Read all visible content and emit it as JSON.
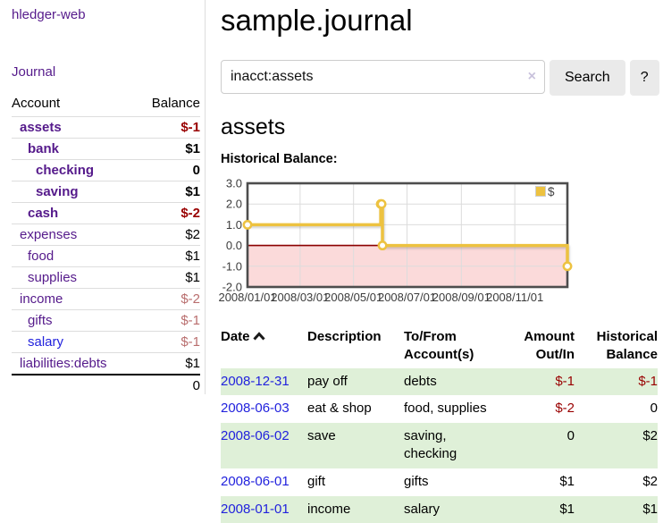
{
  "sidebar": {
    "app_title": "hledger-web",
    "nav_journal_label": "Journal",
    "accounts_table": {
      "headers": {
        "account": "Account",
        "balance": "Balance"
      },
      "rows": [
        {
          "account": "assets",
          "indent": 1,
          "bold": true,
          "balance": "$-1"
        },
        {
          "account": "bank",
          "indent": 2,
          "bold": true,
          "balance": "$1"
        },
        {
          "account": "checking",
          "indent": 3,
          "bold": true,
          "balance": "0"
        },
        {
          "account": "saving",
          "indent": 3,
          "bold": true,
          "balance": "$1"
        },
        {
          "account": "cash",
          "indent": 2,
          "bold": true,
          "balance": "$-2"
        },
        {
          "account": "expenses",
          "indent": 1,
          "bold": false,
          "balance": "$2"
        },
        {
          "account": "food",
          "indent": 2,
          "bold": false,
          "balance": "$1"
        },
        {
          "account": "supplies",
          "indent": 2,
          "bold": false,
          "balance": "$1"
        },
        {
          "account": "income",
          "indent": 1,
          "bold": false,
          "balance": "$-2"
        },
        {
          "account": "gifts",
          "indent": 2,
          "bold": false,
          "balance": "$-1"
        },
        {
          "account": "salary",
          "indent": 2,
          "bold": false,
          "balance": "$-1",
          "link_style": "blue"
        },
        {
          "account": "liabilities:debts",
          "indent": 1,
          "bold": false,
          "balance": "$1"
        }
      ],
      "total": "0"
    }
  },
  "header": {
    "title": "sample.journal"
  },
  "search": {
    "value": "inacct:assets",
    "clear_icon": "×",
    "button_label": "Search",
    "help_label": "?"
  },
  "register": {
    "heading": "assets",
    "chart_label": "Historical Balance:",
    "table": {
      "headers": {
        "date": "Date",
        "description": "Description",
        "accounts": "To/From Account(s)",
        "amount": "Amount Out/In",
        "balance": "Historical Balance"
      },
      "rows": [
        {
          "date": "2008-12-31",
          "description": "pay off",
          "accounts": "debts",
          "amount": "$-1",
          "balance": "$-1"
        },
        {
          "date": "2008-06-03",
          "description": "eat & shop",
          "accounts": "food, supplies",
          "amount": "$-2",
          "balance": "0"
        },
        {
          "date": "2008-06-02",
          "description": "save",
          "accounts": "saving, checking",
          "amount": "0",
          "balance": "$2"
        },
        {
          "date": "2008-06-01",
          "description": "gift",
          "accounts": "gifts",
          "amount": "$1",
          "balance": "$2"
        },
        {
          "date": "2008-01-01",
          "description": "income",
          "accounts": "salary",
          "amount": "$1",
          "balance": "$1"
        }
      ]
    }
  },
  "chart_data": {
    "type": "line",
    "title": "Historical Balance:",
    "step": true,
    "series": [
      {
        "name": "$",
        "color": "#edc240",
        "points": [
          {
            "date": "2008-01-01",
            "value": 1
          },
          {
            "date": "2008-06-01",
            "value": 2
          },
          {
            "date": "2008-06-02",
            "value": 2
          },
          {
            "date": "2008-06-03",
            "value": 0
          },
          {
            "date": "2008-12-31",
            "value": -1
          }
        ]
      }
    ],
    "x_range": [
      "2008-01-01",
      "2008-12-31"
    ],
    "x_ticks": [
      "2008/01/01",
      "2008/03/01",
      "2008/05/01",
      "2008/07/01",
      "2008/09/01",
      "2008/11/01"
    ],
    "y_ticks": [
      3.0,
      2.0,
      1.0,
      0.0,
      -1.0,
      -2.0
    ],
    "ylim": [
      -2,
      3
    ],
    "grid": true,
    "legend": {
      "label": "$",
      "position": "top-right"
    },
    "negative_region_color": "#fbdada",
    "zero_line_color": "#8b0000",
    "grid_color": "#dcdcdc",
    "border_color": "#4d4d4d"
  },
  "colors": {
    "link_purple": "#551a8b",
    "link_blue": "#2222dd",
    "negative_strong": "#990000",
    "negative_muted": "#b96e6e",
    "row_stripe_green": "#dff0d8",
    "chart_gold": "#edc240",
    "chart_negative_fill": "#fbdada",
    "chart_zero_line": "#8b0000"
  }
}
